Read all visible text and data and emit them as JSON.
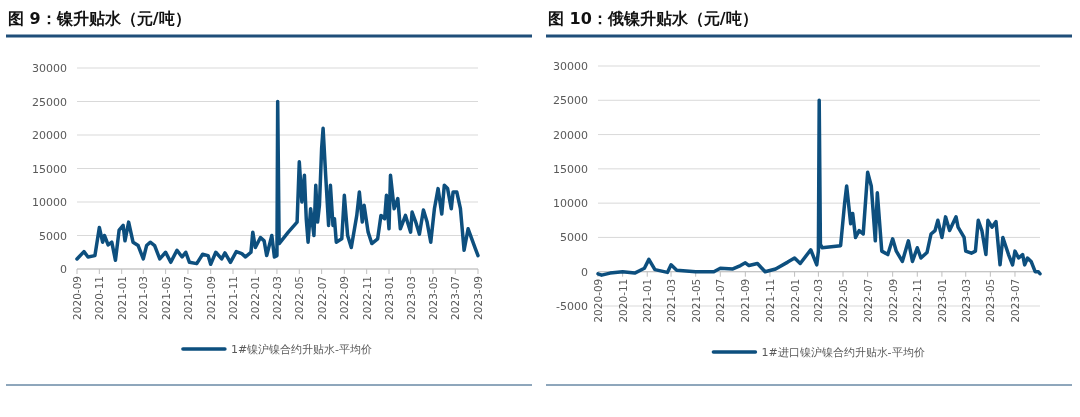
{
  "chart_data": [
    {
      "type": "line",
      "title": "图 9：镍升贴水（元/吨）",
      "ylim": [
        0,
        30000
      ],
      "yticks": [
        0,
        5000,
        10000,
        15000,
        20000,
        25000,
        30000
      ],
      "xlim": [
        "2020-09-01",
        "2023-09-01"
      ],
      "xticks": [
        {
          "value": "2020-09-01",
          "label": "2020-09"
        },
        {
          "value": "2020-11-01",
          "label": "2020-11"
        },
        {
          "value": "2021-01-01",
          "label": "2021-01"
        },
        {
          "value": "2021-03-01",
          "label": "2021-03"
        },
        {
          "value": "2021-05-01",
          "label": "2021-05"
        },
        {
          "value": "2021-07-01",
          "label": "2021-07"
        },
        {
          "value": "2021-09-01",
          "label": "2021-09"
        },
        {
          "value": "2021-11-01",
          "label": "2021-11"
        },
        {
          "value": "2022-01-01",
          "label": "2022-01"
        },
        {
          "value": "2022-03-01",
          "label": "2022-03"
        },
        {
          "value": "2022-05-01",
          "label": "2022-05"
        },
        {
          "value": "2022-07-01",
          "label": "2022-07"
        },
        {
          "value": "2022-09-01",
          "label": "2022-09"
        },
        {
          "value": "2022-11-01",
          "label": "2022-11"
        },
        {
          "value": "2023-01-01",
          "label": "2023-01"
        },
        {
          "value": "2023-03-01",
          "label": "2023-03"
        },
        {
          "value": "2023-05-01",
          "label": "2023-05"
        },
        {
          "value": "2023-07-01",
          "label": "2023-07"
        },
        {
          "value": "2023-09-01",
          "label": "2023-09"
        }
      ],
      "grid": "y",
      "legend": "bottom",
      "marker": "none",
      "line_style": "solid",
      "series": [
        {
          "name": "1#镍沪镍合约升贴水-平均价",
          "color": "#0d4f7e",
          "x": [
            "2020-09-01",
            "2020-09-20",
            "2020-10-01",
            "2020-10-20",
            "2020-11-01",
            "2020-11-10",
            "2020-11-15",
            "2020-11-25",
            "2020-12-05",
            "2020-12-15",
            "2020-12-25",
            "2021-01-05",
            "2021-01-10",
            "2021-01-20",
            "2021-02-01",
            "2021-02-15",
            "2021-03-01",
            "2021-03-10",
            "2021-03-20",
            "2021-04-01",
            "2021-04-15",
            "2021-05-01",
            "2021-05-15",
            "2021-06-01",
            "2021-06-15",
            "2021-06-25",
            "2021-07-05",
            "2021-07-25",
            "2021-08-10",
            "2021-08-25",
            "2021-09-01",
            "2021-09-15",
            "2021-10-01",
            "2021-10-10",
            "2021-10-25",
            "2021-11-10",
            "2021-11-25",
            "2021-12-05",
            "2021-12-20",
            "2021-12-25",
            "2022-01-01",
            "2022-01-15",
            "2022-01-25",
            "2022-02-01",
            "2022-02-15",
            "2022-02-22",
            "2022-03-01",
            "2022-03-03",
            "2022-03-07",
            "2022-04-01",
            "2022-04-25",
            "2022-05-01",
            "2022-05-08",
            "2022-05-15",
            "2022-05-20",
            "2022-05-25",
            "2022-06-01",
            "2022-06-10",
            "2022-06-15",
            "2022-06-20",
            "2022-06-25",
            "2022-07-01",
            "2022-07-05",
            "2022-07-12",
            "2022-07-20",
            "2022-07-25",
            "2022-08-01",
            "2022-08-05",
            "2022-08-10",
            "2022-08-25",
            "2022-09-01",
            "2022-09-10",
            "2022-09-20",
            "2022-10-05",
            "2022-10-12",
            "2022-10-20",
            "2022-10-25",
            "2022-11-05",
            "2022-11-15",
            "2022-12-01",
            "2022-12-10",
            "2022-12-20",
            "2022-12-25",
            "2023-01-01",
            "2023-01-05",
            "2023-01-15",
            "2023-01-25",
            "2023-02-01",
            "2023-02-15",
            "2023-03-01",
            "2023-03-05",
            "2023-03-15",
            "2023-03-25",
            "2023-04-05",
            "2023-04-15",
            "2023-04-25",
            "2023-05-05",
            "2023-05-15",
            "2023-05-25",
            "2023-06-01",
            "2023-06-10",
            "2023-06-20",
            "2023-06-25",
            "2023-07-05",
            "2023-07-15",
            "2023-07-25",
            "2023-08-05",
            "2023-08-15",
            "2023-08-25",
            "2023-09-01"
          ],
          "values": [
            1500,
            2600,
            1800,
            2000,
            6200,
            4000,
            5000,
            3600,
            4000,
            1300,
            5800,
            6500,
            4200,
            7000,
            4000,
            3500,
            1500,
            3500,
            4000,
            3500,
            1500,
            2500,
            1000,
            2800,
            1800,
            2500,
            1000,
            800,
            2200,
            2000,
            700,
            2500,
            1500,
            2400,
            1000,
            2600,
            2300,
            1800,
            2500,
            5500,
            3200,
            4700,
            4200,
            2000,
            5000,
            1800,
            2000,
            25000,
            3800,
            5500,
            7000,
            16000,
            10000,
            14000,
            7500,
            4000,
            9000,
            5000,
            12500,
            7000,
            9500,
            18000,
            21000,
            14000,
            6500,
            12500,
            6500,
            7500,
            4000,
            4500,
            11000,
            5000,
            3200,
            8000,
            11500,
            7000,
            9500,
            5500,
            3800,
            4500,
            8000,
            7500,
            11000,
            6000,
            14000,
            9000,
            10500,
            6000,
            8000,
            5500,
            8500,
            7000,
            5200,
            8800,
            7000,
            4000,
            9000,
            12000,
            8200,
            12500,
            12000,
            9000,
            11500,
            11500,
            9000,
            2800,
            6000,
            4500,
            3000,
            2000
          ]
        }
      ]
    },
    {
      "type": "line",
      "title": "图 10：俄镍升贴水（元/吨）",
      "ylim": [
        -5000,
        30000
      ],
      "yticks": [
        -5000,
        0,
        5000,
        10000,
        15000,
        20000,
        25000,
        30000
      ],
      "xlim": [
        "2020-09-01",
        "2023-09-01"
      ],
      "xticks": [
        {
          "value": "2020-09-01",
          "label": "2020-09"
        },
        {
          "value": "2020-11-01",
          "label": "2020-11"
        },
        {
          "value": "2021-01-01",
          "label": "2021-01"
        },
        {
          "value": "2021-03-01",
          "label": "2021-03"
        },
        {
          "value": "2021-05-01",
          "label": "2021-05"
        },
        {
          "value": "2021-07-01",
          "label": "2021-07"
        },
        {
          "value": "2021-09-01",
          "label": "2021-09"
        },
        {
          "value": "2021-11-01",
          "label": "2021-11"
        },
        {
          "value": "2022-01-01",
          "label": "2022-01"
        },
        {
          "value": "2022-03-01",
          "label": "2022-03"
        },
        {
          "value": "2022-05-01",
          "label": "2022-05"
        },
        {
          "value": "2022-07-01",
          "label": "2022-07"
        },
        {
          "value": "2022-09-01",
          "label": "2022-09"
        },
        {
          "value": "2022-11-01",
          "label": "2022-11"
        },
        {
          "value": "2023-01-01",
          "label": "2023-01"
        },
        {
          "value": "2023-03-01",
          "label": "2023-03"
        },
        {
          "value": "2023-05-01",
          "label": "2023-05"
        },
        {
          "value": "2023-07-01",
          "label": "2023-07"
        }
      ],
      "grid": "y",
      "legend": "bottom",
      "marker": "none",
      "line_style": "solid",
      "series": [
        {
          "name": "1#进口镍沪镍合约升贴水-平均价",
          "color": "#0d4f7e",
          "x": [
            "2020-09-01",
            "2020-09-10",
            "2020-10-01",
            "2020-11-01",
            "2020-12-01",
            "2020-12-25",
            "2021-01-05",
            "2021-01-20",
            "2021-02-20",
            "2021-03-01",
            "2021-03-15",
            "2021-05-01",
            "2021-06-15",
            "2021-07-01",
            "2021-08-01",
            "2021-08-20",
            "2021-09-01",
            "2021-09-10",
            "2021-10-01",
            "2021-10-20",
            "2021-11-15",
            "2021-12-15",
            "2022-01-01",
            "2022-01-15",
            "2022-02-10",
            "2022-02-25",
            "2022-03-01",
            "2022-03-03",
            "2022-03-06",
            "2022-03-10",
            "2022-04-25",
            "2022-05-05",
            "2022-05-10",
            "2022-05-20",
            "2022-05-25",
            "2022-06-01",
            "2022-06-10",
            "2022-06-20",
            "2022-07-01",
            "2022-07-10",
            "2022-07-20",
            "2022-07-25",
            "2022-08-05",
            "2022-08-20",
            "2022-09-01",
            "2022-09-10",
            "2022-09-25",
            "2022-10-10",
            "2022-10-20",
            "2022-11-01",
            "2022-11-10",
            "2022-11-25",
            "2022-12-05",
            "2022-12-15",
            "2022-12-22",
            "2023-01-01",
            "2023-01-10",
            "2023-01-20",
            "2023-02-05",
            "2023-02-10",
            "2023-02-25",
            "2023-03-01",
            "2023-03-15",
            "2023-03-25",
            "2023-04-01",
            "2023-04-10",
            "2023-04-20",
            "2023-04-25",
            "2023-05-05",
            "2023-05-15",
            "2023-05-25",
            "2023-06-01",
            "2023-06-15",
            "2023-06-25",
            "2023-07-01",
            "2023-07-10",
            "2023-07-20",
            "2023-07-25",
            "2023-08-01",
            "2023-08-10",
            "2023-08-20",
            "2023-08-28",
            "2023-09-01"
          ],
          "values": [
            -300,
            -500,
            -200,
            0,
            -200,
            500,
            1800,
            300,
            -100,
            1000,
            200,
            0,
            0,
            500,
            400,
            900,
            1300,
            900,
            1200,
            0,
            400,
            1400,
            2000,
            1200,
            3200,
            1000,
            3000,
            25000,
            4000,
            3500,
            3800,
            10000,
            12500,
            7000,
            8500,
            5000,
            6000,
            5500,
            14500,
            12500,
            4500,
            11500,
            3000,
            2500,
            4800,
            3000,
            1500,
            4500,
            1500,
            3500,
            2000,
            2800,
            5500,
            6000,
            7500,
            5000,
            8000,
            6000,
            8000,
            6500,
            5000,
            3000,
            2700,
            3000,
            7500,
            6000,
            2500,
            7500,
            6500,
            7300,
            1000,
            5000,
            2500,
            1000,
            3000,
            2000,
            2500,
            1000,
            2000,
            1500,
            0,
            0,
            -300
          ]
        }
      ]
    }
  ]
}
